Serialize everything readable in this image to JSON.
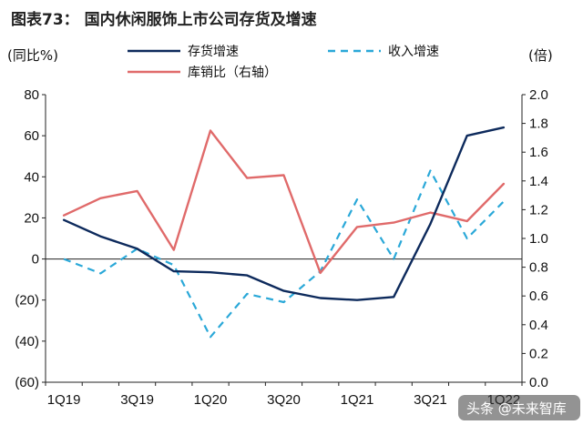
{
  "header": {
    "title": "图表73：  国内休闲服饰上市公司存货及增速"
  },
  "watermark": "头条 @未来智库",
  "chart_data": {
    "type": "line",
    "title": "图表73：  国内休闲服饰上市公司存货及增速",
    "y_left_label": "(同比%)",
    "y_right_label": "(倍)",
    "y_left_lim": [
      -60,
      80
    ],
    "y_left_ticks": [
      80,
      60,
      40,
      20,
      0,
      -20,
      -40,
      -60
    ],
    "y_left_tick_labels": [
      "80",
      "60",
      "40",
      "20",
      "0",
      "(20)",
      "(40)",
      "(60)"
    ],
    "y_right_lim": [
      0.0,
      2.0
    ],
    "y_right_ticks": [
      2.0,
      1.8,
      1.6,
      1.4,
      1.2,
      1.0,
      0.8,
      0.6,
      0.4,
      0.2,
      0.0
    ],
    "y_right_tick_labels": [
      "2.0",
      "1.8",
      "1.6",
      "1.4",
      "1.2",
      "1.0",
      "0.8",
      "0.6",
      "0.4",
      "0.2",
      "0.0"
    ],
    "categories": [
      "1Q19",
      "2Q19",
      "3Q19",
      "4Q19",
      "1Q20",
      "2Q20",
      "3Q20",
      "4Q20",
      "1Q21",
      "2Q21",
      "3Q21",
      "4Q21",
      "1Q22"
    ],
    "x_tick_labels": [
      "1Q19",
      "",
      "3Q19",
      "",
      "1Q20",
      "",
      "3Q20",
      "",
      "1Q21",
      "",
      "3Q21",
      "",
      "1Q22"
    ],
    "grid": false,
    "legend_position": "top",
    "series": [
      {
        "name": "存货增速",
        "axis": "left",
        "style": "solid",
        "color": "#0d2a5c",
        "values": [
          19,
          11,
          5,
          -6,
          -6.5,
          -8,
          -15.5,
          -19,
          -20,
          -18.5,
          17,
          60,
          64
        ]
      },
      {
        "name": "收入增速",
        "axis": "left",
        "style": "dashed",
        "color": "#2aa8d8",
        "values": [
          0,
          -7,
          5,
          -3,
          -38,
          -17,
          -21,
          -6,
          29,
          0,
          43,
          10,
          28
        ]
      },
      {
        "name": "库销比（右轴）",
        "axis": "right",
        "style": "solid",
        "color": "#e06a6a",
        "values": [
          1.16,
          1.28,
          1.33,
          0.92,
          1.75,
          1.42,
          1.44,
          0.76,
          1.08,
          1.11,
          1.18,
          1.12,
          1.38
        ]
      }
    ]
  }
}
